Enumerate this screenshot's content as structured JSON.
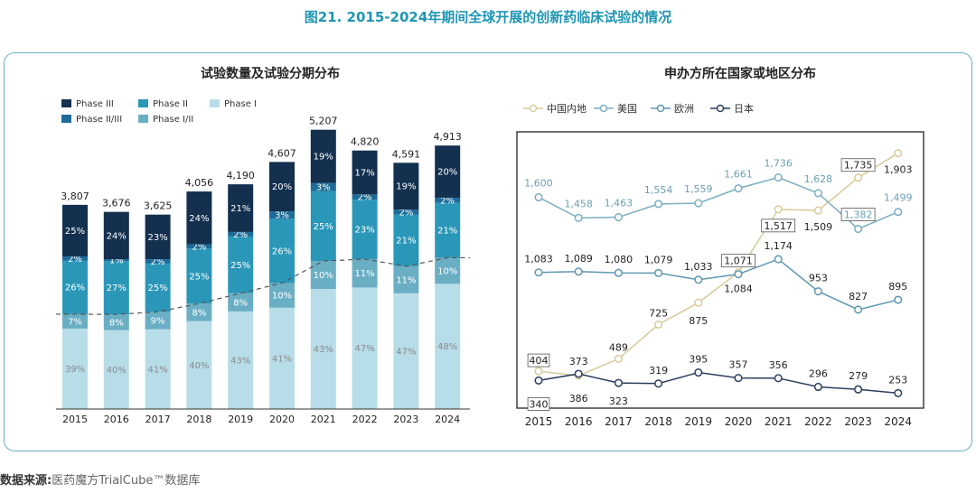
{
  "figure_title": "图21. 2015-2024年期间全球开展的创新药临床试验的情况",
  "source_label": "数据来源:",
  "source_text": "医药魔方TrialCube™数据库",
  "colors": {
    "phase3": "#13304f",
    "phase2": "#2b97b8",
    "phase1": "#b7dde8",
    "phase23": "#1d6b98",
    "phase12": "#6aaec4",
    "china": "#d6cc9a",
    "usa": "#7aaec0",
    "europe": "#5f97b2",
    "japan": "#2d3d5e",
    "panel_border": "#6aaec4",
    "title": "#1e96b4"
  },
  "chart_data": [
    {
      "type": "bar",
      "title": "试验数量及试验分期分布",
      "categories": [
        "2015",
        "2016",
        "2017",
        "2018",
        "2019",
        "2020",
        "2021",
        "2022",
        "2023",
        "2024"
      ],
      "totals": [
        "3,807",
        "3,676",
        "3,625",
        "4,056",
        "4,190",
        "4,607",
        "5,207",
        "4,820",
        "4,591",
        "4,913"
      ],
      "total_values": [
        3807,
        3676,
        3625,
        4056,
        4190,
        4607,
        5207,
        4820,
        4591,
        4913
      ],
      "series": [
        {
          "name": "Phase I",
          "key": "phase1",
          "values": [
            39,
            40,
            41,
            40,
            43,
            41,
            43,
            47,
            47,
            48
          ]
        },
        {
          "name": "Phase I/II",
          "key": "phase12",
          "values": [
            7,
            8,
            9,
            8,
            8,
            10,
            10,
            11,
            11,
            10
          ]
        },
        {
          "name": "Phase II",
          "key": "phase2",
          "values": [
            26,
            27,
            25,
            25,
            25,
            26,
            25,
            23,
            21,
            21
          ]
        },
        {
          "name": "Phase II/III",
          "key": "phase23",
          "values": [
            2,
            1,
            2,
            2,
            2,
            3,
            3,
            2,
            2,
            2
          ]
        },
        {
          "name": "Phase III",
          "key": "phase3",
          "values": [
            25,
            24,
            23,
            24,
            21,
            20,
            19,
            17,
            19,
            20
          ]
        }
      ],
      "legend_order": [
        "Phase III",
        "Phase II",
        "Phase I",
        "Phase II/III",
        "Phase I/II"
      ],
      "dashed_line": "Phase I + Phase I/II",
      "ylim": [
        0,
        5400
      ],
      "legend": "top-left"
    },
    {
      "type": "line",
      "title": "申办方所在国家或地区分布",
      "x": [
        "2015",
        "2016",
        "2017",
        "2018",
        "2019",
        "2020",
        "2021",
        "2022",
        "2023",
        "2024"
      ],
      "series": [
        {
          "name": "中国内地",
          "key": "china",
          "values": [
            404,
            373,
            489,
            725,
            875,
            1084,
            1517,
            1509,
            1735,
            1903
          ],
          "labels": [
            "404",
            "",
            "489",
            "725",
            "875",
            "1,084",
            "1,517",
            "1,509",
            "1,735",
            "1,903"
          ]
        },
        {
          "name": "美国",
          "key": "usa",
          "values": [
            1600,
            1458,
            1463,
            1554,
            1559,
            1661,
            1736,
            1628,
            1382,
            1499
          ],
          "labels": [
            "1,600",
            "1,458",
            "1,463",
            "1,554",
            "1,559",
            "1,661",
            "1,736",
            "1,628",
            "1,382",
            "1,499"
          ]
        },
        {
          "name": "欧洲",
          "key": "europe",
          "values": [
            1083,
            1089,
            1080,
            1079,
            1033,
            1071,
            1174,
            953,
            827,
            895
          ],
          "labels": [
            "1,083",
            "1,089",
            "1,080",
            "1,079",
            "1,033",
            "1,071",
            "1,174",
            "953",
            "827",
            "895"
          ]
        },
        {
          "name": "日本",
          "key": "japan",
          "values": [
            340,
            386,
            323,
            319,
            395,
            357,
            356,
            296,
            279,
            253
          ],
          "labels": [
            "340",
            "386",
            "323",
            "319",
            "395",
            "357",
            "356",
            "296",
            "279",
            "253"
          ]
        }
      ],
      "extra_label": "373",
      "ylim": [
        150,
        2050
      ],
      "grid": false,
      "legend": "top-left"
    }
  ]
}
